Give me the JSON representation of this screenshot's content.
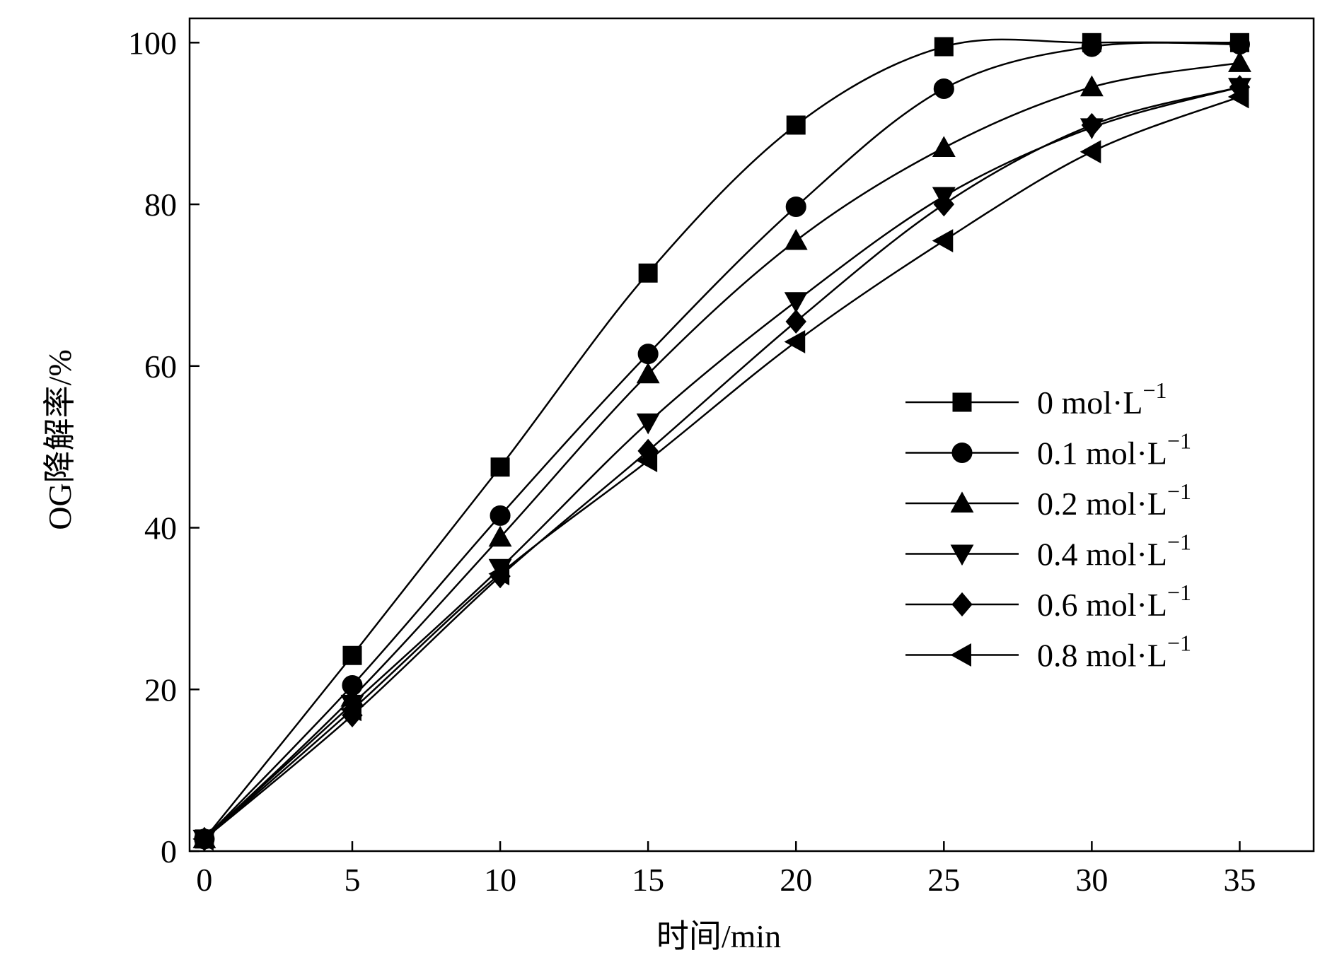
{
  "chart_data": {
    "type": "line",
    "title": "",
    "xlabel": "时间/min",
    "ylabel": "OG降解率/%",
    "xlim": [
      -0.5,
      37.5
    ],
    "ylim": [
      0,
      103
    ],
    "xticks": [
      0,
      5,
      10,
      15,
      20,
      25,
      30,
      35
    ],
    "yticks": [
      0,
      20,
      40,
      60,
      80,
      100
    ],
    "grid": false,
    "legend_position": "right",
    "x": [
      0,
      5,
      10,
      15,
      20,
      25,
      30,
      35
    ],
    "series": [
      {
        "name": "0 mol·L",
        "sup": "−1",
        "marker": "square",
        "values": [
          1.5,
          24.2,
          47.5,
          71.5,
          89.8,
          99.5,
          100,
          100
        ]
      },
      {
        "name": "0.1 mol·L",
        "sup": "−1",
        "marker": "circle",
        "values": [
          1.5,
          20.5,
          41.5,
          61.5,
          79.7,
          94.3,
          99.5,
          99.8
        ]
      },
      {
        "name": "0.2 mol·L",
        "sup": "−1",
        "marker": "triangle-up",
        "values": [
          1.5,
          19.0,
          38.8,
          59.0,
          75.5,
          87.0,
          94.5,
          97.5
        ]
      },
      {
        "name": "0.4 mol·L",
        "sup": "−1",
        "marker": "triangle-down",
        "values": [
          1.5,
          18.2,
          35.0,
          53.0,
          68.0,
          81.0,
          89.5,
          94.5
        ]
      },
      {
        "name": "0.6 mol·L",
        "sup": "−1",
        "marker": "diamond",
        "values": [
          1.5,
          16.8,
          34.0,
          49.5,
          65.5,
          80.0,
          89.8,
          94.5
        ]
      },
      {
        "name": "0.8 mol·L",
        "sup": "−1",
        "marker": "triangle-left",
        "values": [
          1.5,
          17.5,
          34.3,
          48.3,
          63.0,
          75.5,
          86.5,
          93.3
        ]
      }
    ]
  }
}
